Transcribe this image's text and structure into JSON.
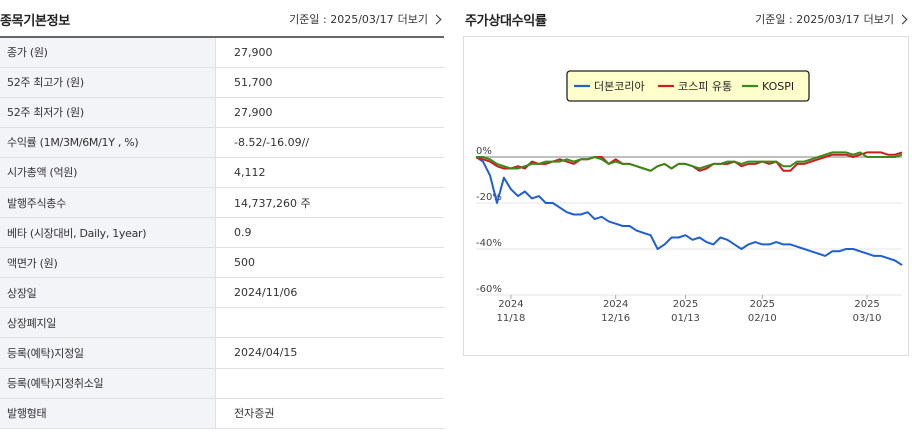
{
  "basic_info": {
    "title": "종목기본정보",
    "ref_date": "기준일 : 2025/03/17",
    "more_label": "더보기",
    "rows": [
      {
        "label": "종가 (원)",
        "value": "27,900"
      },
      {
        "label": "52주 최고가 (원)",
        "value": "51,700"
      },
      {
        "label": "52주 최저가 (원)",
        "value": "27,900"
      },
      {
        "label": "수익률 (1M/3M/6M/1Y , %)",
        "value": "-8.52/-16.09//"
      },
      {
        "label": "시가총액 (억원)",
        "value": "4,112"
      },
      {
        "label": "발행주식총수",
        "value": "14,737,260 주"
      },
      {
        "label": "베타 (시장대비, Daily, 1year)",
        "value": "0.9"
      },
      {
        "label": "액면가 (원)",
        "value": "500"
      },
      {
        "label": "상장일",
        "value": "2024/11/06"
      },
      {
        "label": "상장폐지일",
        "value": ""
      },
      {
        "label": "등록(예탁)지정일",
        "value": "2024/04/15"
      },
      {
        "label": "등록(예탁)지정취소일",
        "value": ""
      },
      {
        "label": "발행형태",
        "value": "전자증권"
      }
    ]
  },
  "relative_return": {
    "title": "주가상대수익률",
    "ref_date": "기준일 : 2025/03/17",
    "more_label": "더보기"
  },
  "icons": {
    "more": "chevron-right-icon"
  },
  "colors": {
    "stock": "#1f5fd0",
    "sector": "#c81e1e",
    "kospi": "#3a8a1a",
    "legend_bg": "#ffffcc"
  },
  "chart_data": {
    "type": "line",
    "title": "",
    "xlabel": "",
    "ylabel": "",
    "ylim": [
      -60,
      5
    ],
    "xlim": [
      0,
      61
    ],
    "yticks": [
      {
        "value": 0,
        "label": "0%"
      },
      {
        "value": -20,
        "label": "-20%"
      },
      {
        "value": -40,
        "label": "-40%"
      },
      {
        "value": -60,
        "label": "-60%"
      }
    ],
    "xticks": [
      {
        "pos": 5,
        "year": "2024",
        "md": "11/18"
      },
      {
        "pos": 20,
        "year": "2024",
        "md": "12/16"
      },
      {
        "pos": 30,
        "year": "2025",
        "md": "01/13"
      },
      {
        "pos": 41,
        "year": "2025",
        "md": "02/10"
      },
      {
        "pos": 56,
        "year": "2025",
        "md": "03/10"
      }
    ],
    "grid": true,
    "legend_position": "top-center",
    "series": [
      {
        "name": "더본코리아",
        "color": "#1f5fd0",
        "values": [
          0,
          -2,
          -8,
          -20,
          -9,
          -14,
          -17,
          -15,
          -18,
          -17,
          -20,
          -20,
          -22,
          -24,
          -25,
          -25,
          -24,
          -27,
          -26,
          -28,
          -29,
          -30,
          -30,
          -32,
          -33,
          -34,
          -40,
          -38,
          -35,
          -35,
          -34,
          -36,
          -35,
          -37,
          -38,
          -35,
          -36,
          -38,
          -40,
          -38,
          -37,
          -38,
          -38,
          -37,
          -38,
          -38,
          -39,
          -40,
          -41,
          -42,
          -43,
          -41,
          -41,
          -40,
          -40,
          -41,
          -42,
          -43,
          -43,
          -44,
          -45,
          -47
        ]
      },
      {
        "name": "코스피 유통",
        "color": "#c81e1e",
        "values": [
          0,
          -1,
          -2,
          -4,
          -5,
          -5,
          -4,
          -5,
          -2,
          -3,
          -3,
          -2,
          -1,
          -2,
          -3,
          -1,
          -1,
          0,
          0,
          -3,
          -1,
          -3,
          -3,
          -4,
          -5,
          -6,
          -4,
          -3,
          -5,
          -3,
          -3,
          -4,
          -6,
          -5,
          -3,
          -3,
          -3,
          -2,
          -4,
          -3,
          -3,
          -2,
          -3,
          -2,
          -6,
          -6,
          -3,
          -3,
          -2,
          -1,
          0,
          1,
          1,
          1,
          0,
          1,
          2,
          2,
          2,
          1,
          1,
          2
        ]
      },
      {
        "name": "KOSPI",
        "color": "#3a8a1a",
        "values": [
          0,
          0,
          -1,
          -3,
          -4,
          -5,
          -5,
          -4,
          -3,
          -3,
          -2,
          -2,
          -2,
          -1,
          -2,
          -1,
          -1,
          0,
          -1,
          -3,
          -2,
          -3,
          -3,
          -4,
          -5,
          -6,
          -4,
          -3,
          -5,
          -3,
          -3,
          -4,
          -5,
          -4,
          -3,
          -3,
          -2,
          -2,
          -3,
          -2,
          -2,
          -2,
          -2,
          -2,
          -4,
          -4,
          -2,
          -2,
          -1,
          0,
          1,
          2,
          2,
          2,
          1,
          2,
          0,
          0,
          0,
          0,
          0,
          1
        ]
      }
    ]
  }
}
